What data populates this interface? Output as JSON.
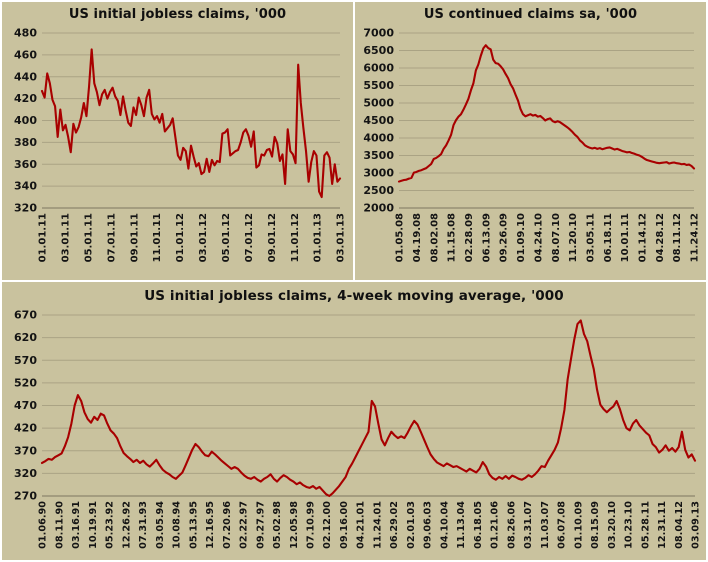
{
  "page": {
    "background_color": "#c9c29e",
    "divider_color": "#ffffff",
    "line_color": "#a80000",
    "grid_color": "#aaa384",
    "axis_color": "#7d7760",
    "text_color": "#141414"
  },
  "chart_data": [
    {
      "id": "initial-claims-weekly",
      "type": "line",
      "title": "US initial jobless claims, '000",
      "xlabel": "",
      "ylabel": "",
      "legend": "none",
      "grid": true,
      "ylim": [
        320,
        480
      ],
      "yticks": [
        320,
        340,
        360,
        380,
        400,
        420,
        440,
        460,
        480
      ],
      "x_labels": [
        "01.01.11",
        "03.01.11",
        "05.01.11",
        "07.01.11",
        "09.01.11",
        "11.01.11",
        "01.01.12",
        "03.01.12",
        "05.01.12",
        "07.01.12",
        "09.01.12",
        "11.01.12",
        "01.01.13",
        "03.01.13"
      ],
      "values": [
        427,
        421,
        443,
        434,
        419,
        413,
        385,
        410,
        391,
        396,
        385,
        371,
        397,
        389,
        394,
        403,
        416,
        404,
        431,
        465,
        434,
        426,
        414,
        424,
        428,
        420,
        426,
        430,
        422,
        418,
        405,
        422,
        409,
        398,
        395,
        412,
        405,
        421,
        414,
        404,
        421,
        428,
        406,
        401,
        404,
        398,
        406,
        390,
        393,
        396,
        402,
        385,
        368,
        364,
        375,
        372,
        356,
        377,
        367,
        358,
        361,
        351,
        353,
        365,
        353,
        364,
        359,
        363,
        362,
        388,
        389,
        392,
        368,
        370,
        372,
        373,
        380,
        389,
        392,
        386,
        376,
        390,
        357,
        359,
        369,
        368,
        373,
        374,
        367,
        385,
        379,
        363,
        369,
        342,
        392,
        372,
        369,
        361,
        451,
        416,
        393,
        372,
        344,
        362,
        372,
        368,
        335,
        330,
        368,
        371,
        366,
        342,
        360,
        344,
        347
      ]
    },
    {
      "id": "continued-claims",
      "type": "line",
      "title": "US continued claims sa, '000",
      "xlabel": "",
      "ylabel": "",
      "legend": "none",
      "grid": true,
      "ylim": [
        2000,
        7000
      ],
      "yticks": [
        2000,
        2500,
        3000,
        3500,
        4000,
        4500,
        5000,
        5500,
        6000,
        6500,
        7000
      ],
      "x_labels": [
        "01.05.08",
        "04.19.08",
        "08.02.08",
        "11.15.08",
        "02.28.09",
        "06.13.09",
        "09.26.09",
        "01.09.10",
        "04.24.10",
        "08.07.10",
        "11.20.10",
        "03.05.11",
        "06.18.11",
        "10.01.11",
        "01.14.12",
        "04.28.12",
        "08.11.12",
        "11.24.12"
      ],
      "values": [
        2755,
        2780,
        2800,
        2810,
        2840,
        2860,
        3010,
        3030,
        3060,
        3080,
        3110,
        3140,
        3200,
        3260,
        3400,
        3430,
        3480,
        3540,
        3690,
        3790,
        3930,
        4090,
        4370,
        4510,
        4610,
        4680,
        4810,
        4960,
        5120,
        5360,
        5560,
        5930,
        6100,
        6350,
        6560,
        6650,
        6570,
        6530,
        6240,
        6140,
        6120,
        6050,
        5960,
        5830,
        5710,
        5540,
        5420,
        5240,
        5070,
        4830,
        4680,
        4620,
        4650,
        4680,
        4640,
        4660,
        4610,
        4630,
        4570,
        4500,
        4540,
        4560,
        4480,
        4450,
        4480,
        4450,
        4400,
        4350,
        4300,
        4240,
        4170,
        4090,
        4030,
        3930,
        3870,
        3790,
        3750,
        3720,
        3700,
        3720,
        3690,
        3710,
        3680,
        3700,
        3720,
        3730,
        3700,
        3670,
        3690,
        3660,
        3630,
        3610,
        3590,
        3600,
        3570,
        3550,
        3520,
        3500,
        3460,
        3410,
        3370,
        3350,
        3330,
        3310,
        3290,
        3280,
        3290,
        3300,
        3310,
        3270,
        3290,
        3300,
        3280,
        3270,
        3250,
        3260,
        3230,
        3240,
        3200,
        3130
      ]
    },
    {
      "id": "initial-claims-4wk-ma",
      "type": "line",
      "title": "US initial jobless claims, 4-week moving average, '000",
      "xlabel": "",
      "ylabel": "",
      "legend": "none",
      "grid": true,
      "ylim": [
        270,
        670
      ],
      "yticks": [
        270,
        320,
        370,
        420,
        470,
        520,
        570,
        620,
        670
      ],
      "x_labels": [
        "01.06.90",
        "08.11.90",
        "03.16.91",
        "10.19.91",
        "05.23.92",
        "12.26.92",
        "07.31.93",
        "03.05.94",
        "10.08.94",
        "05.13.95",
        "12.16.95",
        "07.20.96",
        "02.22.97",
        "09.27.97",
        "05.02.98",
        "12.05.98",
        "07.10.99",
        "02.12.00",
        "09.16.00",
        "04.21.01",
        "11.24.01",
        "06.29.02",
        "02.01.03",
        "09.06.03",
        "04.10.04",
        "11.13.04",
        "06.18.05",
        "01.21.06",
        "08.26.06",
        "03.31.07",
        "11.03.07",
        "06.07.08",
        "01.10.09",
        "08.15.09",
        "03.20.10",
        "10.23.10",
        "05.28.11",
        "12.31.11",
        "08.04.12",
        "03.09.13"
      ],
      "values": [
        343,
        347,
        352,
        350,
        356,
        360,
        364,
        380,
        400,
        430,
        470,
        493,
        480,
        455,
        440,
        432,
        445,
        438,
        452,
        448,
        430,
        415,
        408,
        398,
        380,
        365,
        358,
        352,
        345,
        350,
        343,
        348,
        340,
        335,
        342,
        350,
        338,
        328,
        322,
        318,
        312,
        308,
        315,
        322,
        338,
        355,
        372,
        385,
        378,
        368,
        360,
        358,
        368,
        362,
        355,
        348,
        342,
        336,
        330,
        334,
        330,
        322,
        315,
        310,
        308,
        312,
        306,
        302,
        308,
        312,
        318,
        308,
        302,
        310,
        316,
        312,
        306,
        302,
        296,
        300,
        294,
        290,
        288,
        292,
        286,
        290,
        282,
        274,
        270,
        276,
        284,
        292,
        302,
        312,
        330,
        342,
        356,
        370,
        384,
        398,
        412,
        480,
        468,
        430,
        395,
        382,
        398,
        412,
        404,
        398,
        402,
        398,
        410,
        424,
        436,
        428,
        412,
        395,
        378,
        362,
        352,
        344,
        340,
        336,
        342,
        338,
        334,
        336,
        332,
        328,
        324,
        330,
        326,
        322,
        330,
        345,
        335,
        318,
        310,
        306,
        312,
        308,
        314,
        308,
        315,
        312,
        308,
        306,
        310,
        316,
        312,
        318,
        326,
        336,
        334,
        348,
        360,
        372,
        388,
        420,
        460,
        528,
        572,
        615,
        650,
        658,
        628,
        612,
        580,
        550,
        505,
        472,
        462,
        455,
        462,
        468,
        480,
        462,
        438,
        420,
        415,
        430,
        438,
        426,
        418,
        410,
        404,
        385,
        378,
        366,
        372,
        382,
        370,
        376,
        368,
        378,
        412,
        372,
        355,
        362,
        348
      ]
    }
  ]
}
